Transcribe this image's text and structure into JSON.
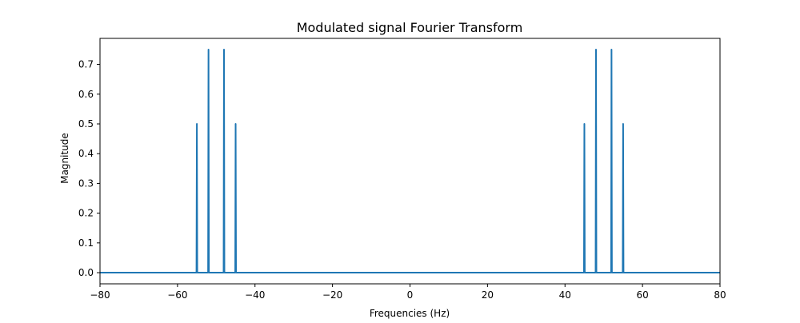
{
  "chart_data": {
    "type": "line",
    "title": "Modulated signal Fourier Transform",
    "xlabel": "Frequencies (Hz)",
    "ylabel": "Magnitude",
    "xlim": [
      -80,
      80
    ],
    "ylim": [
      -0.0375,
      0.7875
    ],
    "xticks": [
      -80,
      -60,
      -40,
      -20,
      0,
      20,
      40,
      60,
      80
    ],
    "xtick_labels": [
      "−80",
      "−60",
      "−40",
      "−20",
      "0",
      "20",
      "40",
      "60",
      "80"
    ],
    "yticks": [
      0.0,
      0.1,
      0.2,
      0.3,
      0.4,
      0.5,
      0.6,
      0.7
    ],
    "ytick_labels": [
      "0.0",
      "0.1",
      "0.2",
      "0.3",
      "0.4",
      "0.5",
      "0.6",
      "0.7"
    ],
    "grid": false,
    "series": [
      {
        "color": "#1f77b4",
        "x": [
          -80,
          -55.1,
          -55,
          -54.9,
          -52.1,
          -52,
          -51.9,
          -48.1,
          -48,
          -47.9,
          -45.1,
          -45,
          -44.9,
          44.9,
          45,
          45.1,
          47.9,
          48,
          48.1,
          51.9,
          52,
          52.1,
          54.9,
          55,
          55.1,
          80
        ],
        "y": [
          0,
          0,
          0.5,
          0,
          0,
          0.75,
          0,
          0,
          0.75,
          0,
          0,
          0.5,
          0,
          0,
          0.5,
          0,
          0,
          0.75,
          0,
          0,
          0.75,
          0,
          0,
          0.5,
          0,
          0
        ]
      }
    ]
  }
}
